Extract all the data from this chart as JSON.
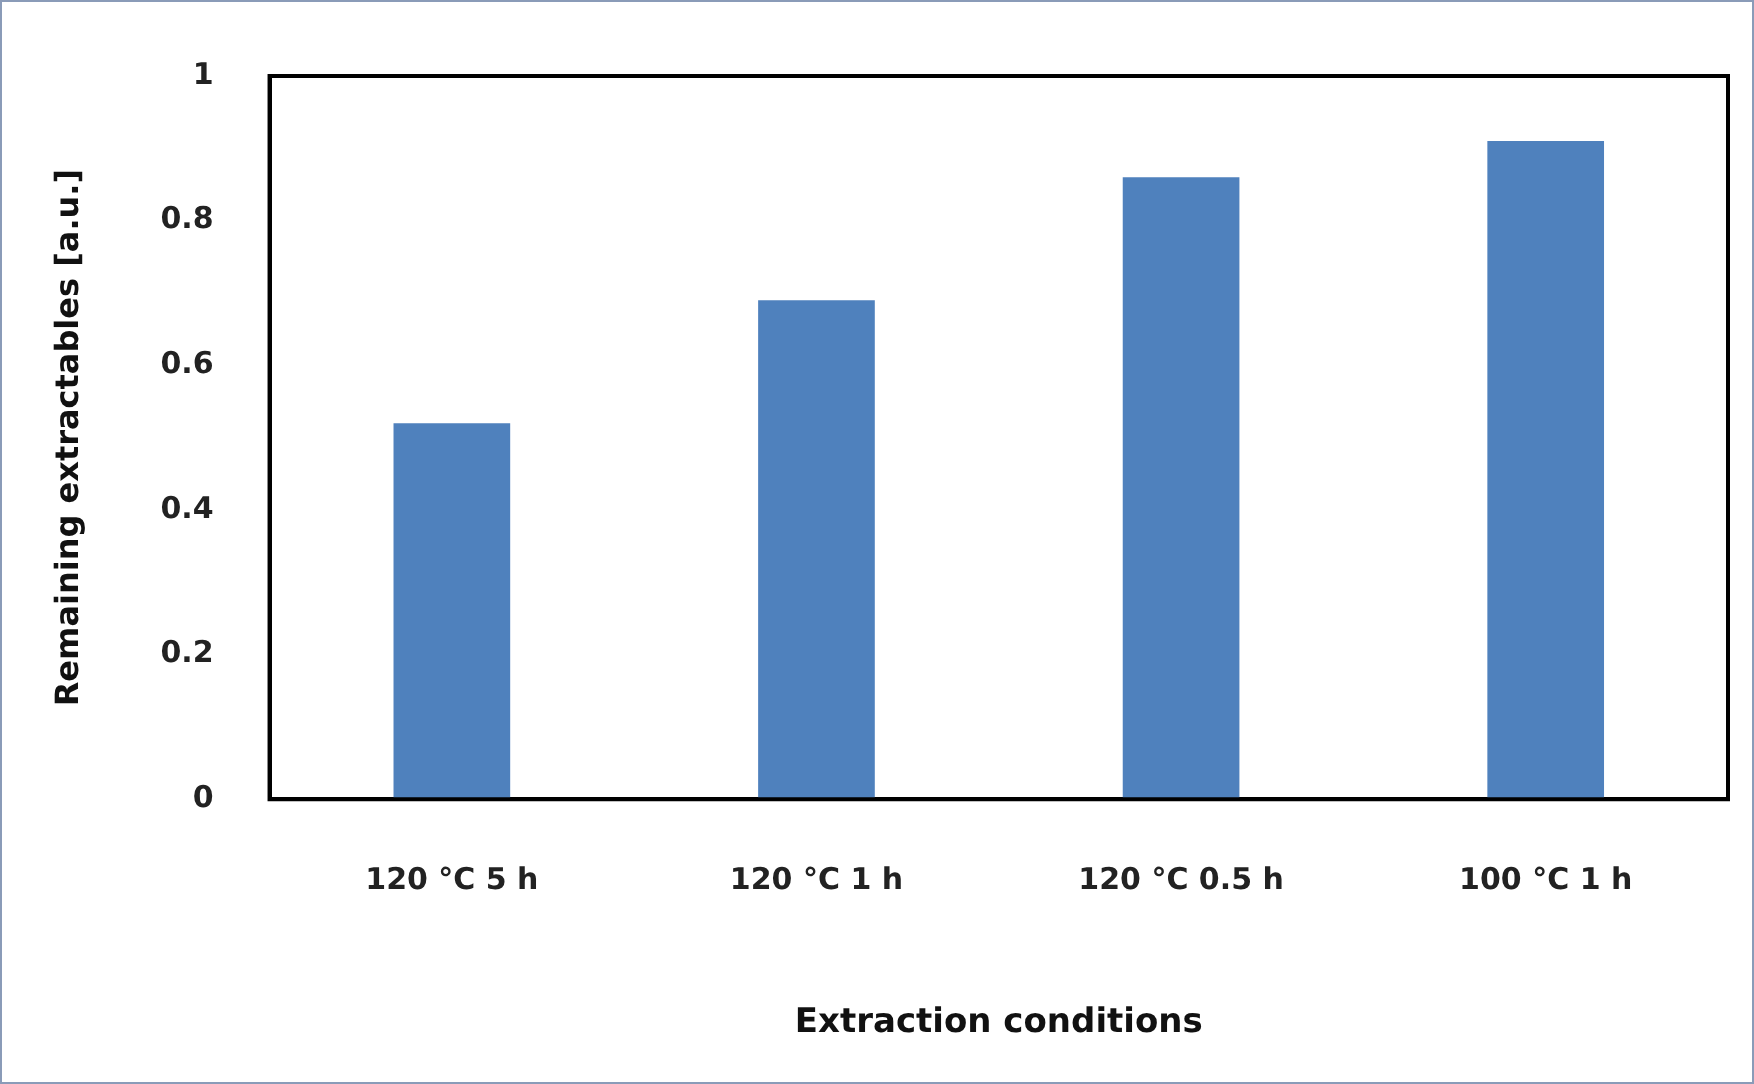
{
  "chart_data": {
    "type": "bar",
    "xlabel": "Extraction conditions",
    "ylabel": "Remaining extractables [a.u.]",
    "categories": [
      "120 °C 5 h",
      "120 °C 1 h",
      "120 °C 0.5 h",
      "100 °C 1 h"
    ],
    "values": [
      0.52,
      0.69,
      0.86,
      0.91
    ],
    "color": "#4f81bd",
    "ylim": [
      0,
      1
    ],
    "yticks": [
      0,
      0.2,
      0.4,
      0.6,
      0.8,
      1
    ],
    "grid": false,
    "legend": false
  }
}
